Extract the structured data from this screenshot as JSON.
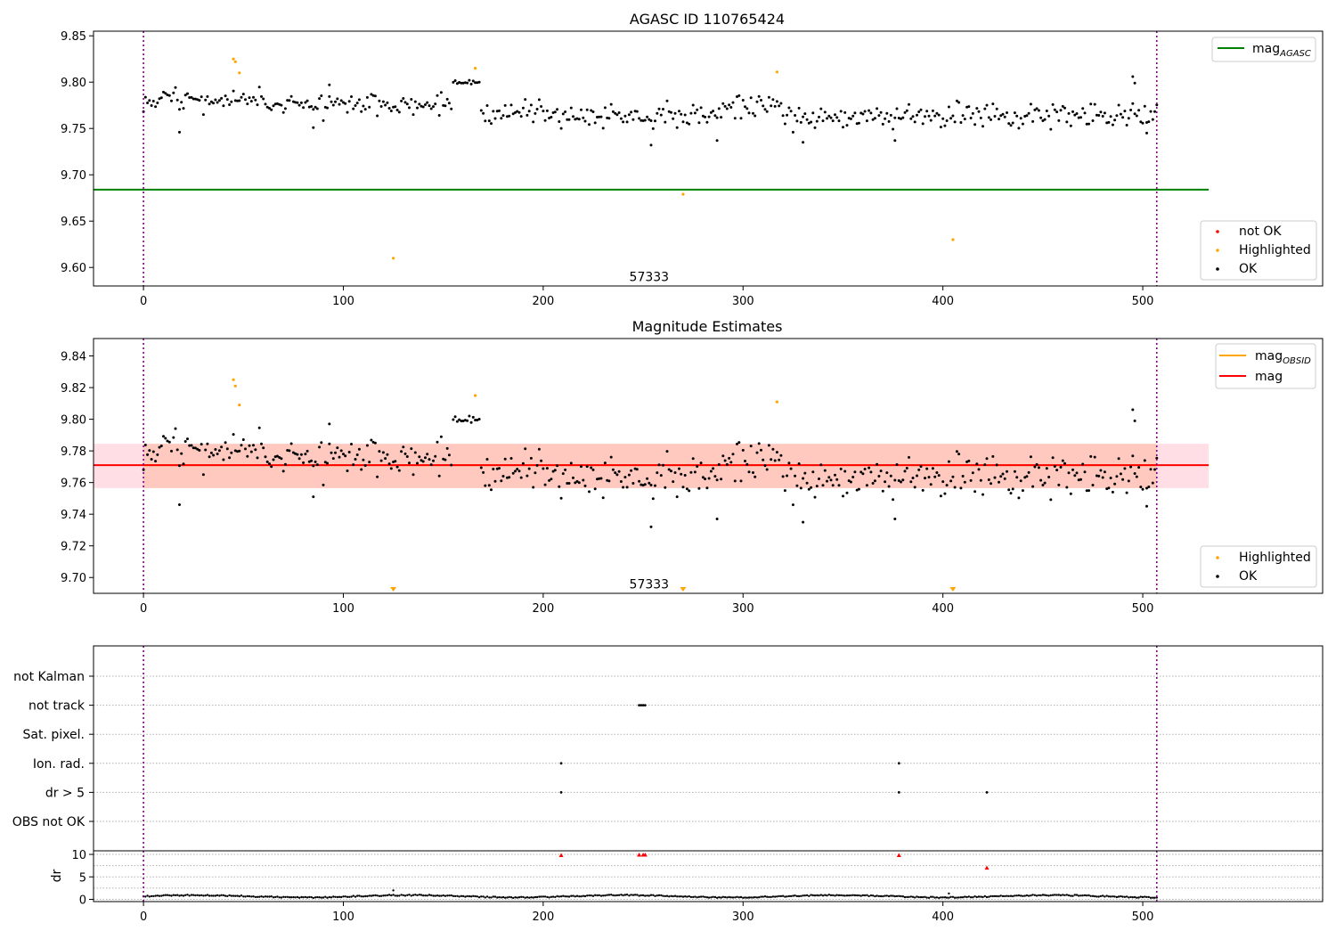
{
  "colors": {
    "ok": "#000000",
    "highlighted": "#ffa500",
    "not_ok": "#ff0000",
    "agasc_line": "#008000",
    "obsid_line": "#ffa500",
    "mag_line": "#ff0000",
    "band_pink": "#ffc0cb",
    "band_salmon": "#ffa07a",
    "boundary": "#800080",
    "grid": "#b0b0b0"
  },
  "chart_data": [
    {
      "type": "scatter",
      "title": "AGASC ID 110765424",
      "xlim": [
        -25,
        590
      ],
      "ylim": [
        9.58,
        9.855
      ],
      "xticks": [
        0,
        100,
        200,
        300,
        400,
        500
      ],
      "yticks": [
        9.6,
        9.65,
        9.7,
        9.75,
        9.8,
        9.85
      ],
      "ytick_labels": [
        "9.60",
        "9.65",
        "9.70",
        "9.75",
        "9.80",
        "9.85"
      ],
      "annotation": {
        "text": "57333",
        "x": 253,
        "y": 9.59
      },
      "boundaries": [
        0,
        507
      ],
      "mag_agasc": 9.684,
      "line_xmax": 533,
      "legend_top": {
        "position": "upper right",
        "entries": [
          {
            "label": "mag",
            "sub": "AGASC"
          }
        ]
      },
      "legend_bottom": {
        "position": "lower right",
        "entries": [
          "not OK",
          "Highlighted",
          "OK"
        ]
      },
      "highlighted": [
        [
          45,
          9.825
        ],
        [
          46,
          9.822
        ],
        [
          48,
          9.81
        ],
        [
          125,
          9.61
        ],
        [
          166,
          9.815
        ],
        [
          270,
          9.679
        ],
        [
          317,
          9.811
        ],
        [
          405,
          9.63
        ]
      ]
    },
    {
      "type": "scatter",
      "title": "Magnitude Estimates",
      "xlim": [
        -25,
        590
      ],
      "ylim": [
        9.69,
        9.851
      ],
      "xticks": [
        0,
        100,
        200,
        300,
        400,
        500
      ],
      "yticks": [
        9.7,
        9.72,
        9.74,
        9.76,
        9.78,
        9.8,
        9.82,
        9.84
      ],
      "ytick_labels": [
        "9.70",
        "9.72",
        "9.74",
        "9.76",
        "9.78",
        "9.80",
        "9.82",
        "9.84"
      ],
      "annotation": {
        "text": "57333",
        "x": 253,
        "y": 9.696
      },
      "boundaries": [
        0,
        507
      ],
      "mag": 9.771,
      "mag_obsid": 9.771,
      "band_outer": [
        9.7565,
        9.7845
      ],
      "band_inner": [
        9.7565,
        9.7845
      ],
      "band_xmax": 533,
      "legend_top": {
        "position": "upper right",
        "entries": [
          {
            "label": "mag",
            "sub": "OBSID"
          },
          {
            "label": "mag",
            "sub": ""
          }
        ]
      },
      "legend_bottom": {
        "position": "lower right",
        "entries": [
          "Highlighted",
          "OK"
        ]
      },
      "highlighted": [
        [
          45,
          9.825
        ],
        [
          46,
          9.821
        ],
        [
          48,
          9.809
        ],
        [
          166,
          9.815
        ],
        [
          317,
          9.811
        ]
      ],
      "below_range": [
        125,
        270,
        405
      ]
    },
    {
      "type": "scatter",
      "title": "",
      "xlim": [
        -25,
        590
      ],
      "categories": [
        "not Kalman",
        "not track",
        "Sat. pixel.",
        "Ion. rad.",
        "dr > 5",
        "OBS not OK"
      ],
      "flags": {
        "not track": [
          248,
          249,
          250,
          251
        ],
        "Ion. rad.": [
          209,
          378
        ],
        "dr > 5": [
          209,
          378,
          422
        ]
      },
      "boundaries": [
        0,
        507
      ]
    },
    {
      "type": "scatter",
      "title": "",
      "ylabel": "dr",
      "xlim": [
        -25,
        590
      ],
      "ylim": [
        -0.5,
        10.8
      ],
      "xticks": [
        0,
        100,
        200,
        300,
        400,
        500
      ],
      "yticks": [
        0,
        5,
        10
      ],
      "ytick_labels": [
        "0",
        "5",
        "10"
      ],
      "boundaries": [
        0,
        507
      ],
      "red_points": [
        [
          209,
          9.8
        ],
        [
          248,
          9.9
        ],
        [
          250,
          9.9
        ],
        [
          251,
          9.9
        ],
        [
          378,
          9.8
        ],
        [
          422,
          7.0
        ]
      ],
      "outlier_points": [
        [
          125,
          2.0
        ],
        [
          403,
          1.3
        ]
      ]
    }
  ]
}
